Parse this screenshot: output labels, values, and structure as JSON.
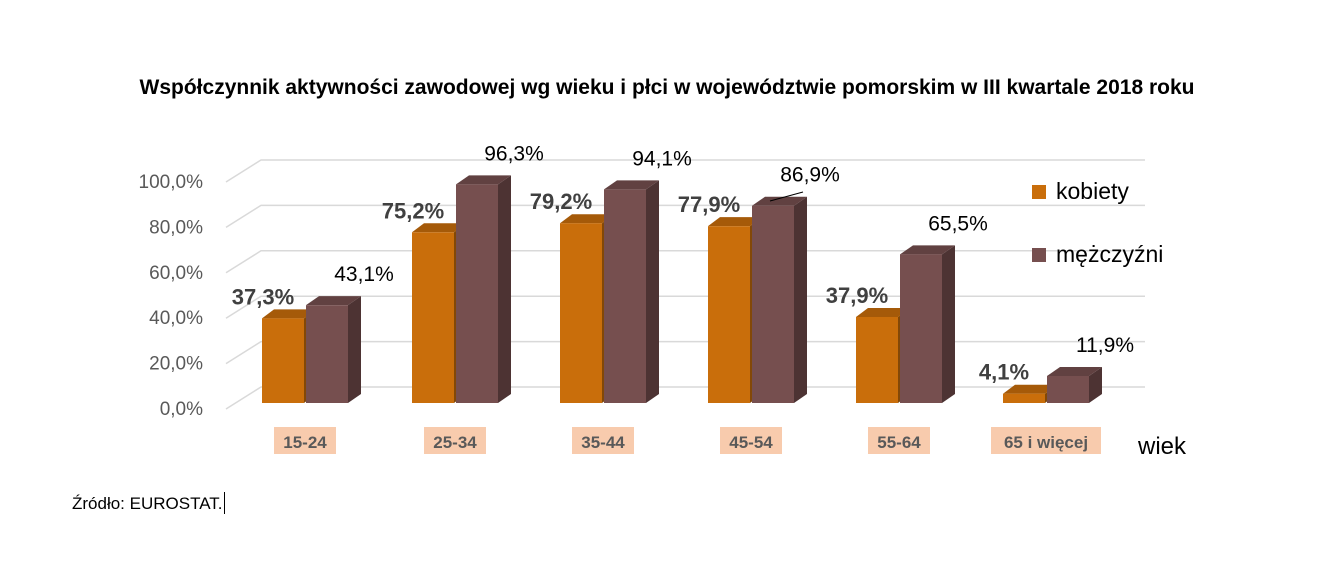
{
  "chart_data": {
    "type": "bar",
    "title": "Współczynnik aktywności zawodowej wg wieku i płci w województwie pomorskim w III kwartale 2018 roku",
    "categories": [
      "15-24",
      "25-34",
      "35-44",
      "45-54",
      "55-64",
      "65 i więcej"
    ],
    "series": [
      {
        "name": "kobiety",
        "values": [
          37.3,
          75.2,
          79.2,
          77.9,
          37.9,
          4.1
        ],
        "labels": [
          "37,3%",
          "75,2%",
          "79,2%",
          "77,9%",
          "37,9%",
          "4,1%"
        ],
        "color": "#c96e0b"
      },
      {
        "name": "mężczyźni",
        "values": [
          43.1,
          96.3,
          94.1,
          86.9,
          65.5,
          11.9
        ],
        "labels": [
          "43,1%",
          "96,3%",
          "94,1%",
          "86,9%",
          "65,5%",
          "11,9%"
        ],
        "color": "#764f4f"
      }
    ],
    "xlabel": "wiek",
    "ylabel": "",
    "ylim": [
      0,
      100
    ],
    "yticks": [
      "0,0%",
      "20,0%",
      "40,0%",
      "60,0%",
      "80,0%",
      "100,0%"
    ],
    "grid": true,
    "legend_position": "right",
    "style": "3d-clustered-column",
    "category_label_bg": "#f8cbad"
  },
  "source": "Źródło: EUROSTAT."
}
